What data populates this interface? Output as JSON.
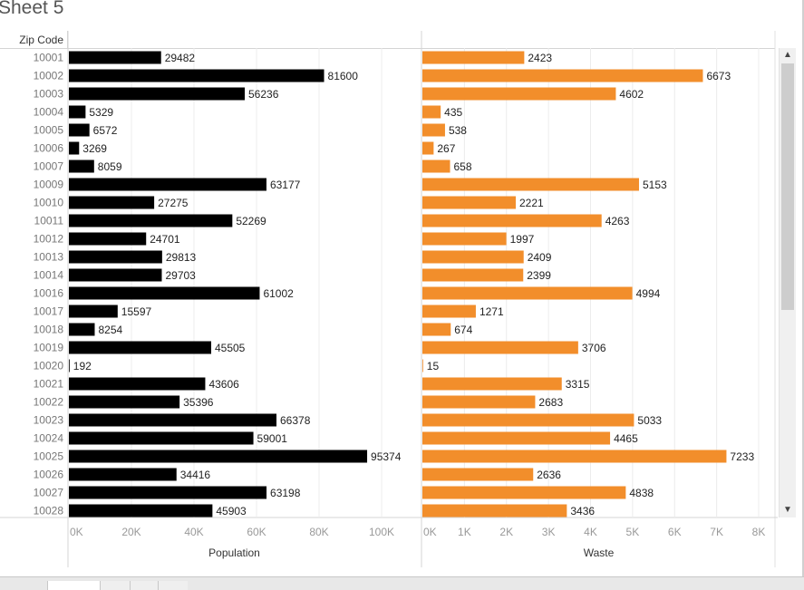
{
  "sheet_title": "Sheet 5",
  "row_header_label": "Zip Code",
  "chart_data": {
    "type": "bar",
    "orientation": "horizontal",
    "categories": [
      "10001",
      "10002",
      "10003",
      "10004",
      "10005",
      "10006",
      "10007",
      "10009",
      "10010",
      "10011",
      "10012",
      "10013",
      "10014",
      "10016",
      "10017",
      "10018",
      "10019",
      "10020",
      "10021",
      "10022",
      "10023",
      "10024",
      "10025",
      "10026",
      "10027",
      "10028"
    ],
    "series": [
      {
        "name": "Population",
        "color": "#000000",
        "values": [
          29482,
          81600,
          56236,
          5329,
          6572,
          3269,
          8059,
          63177,
          27275,
          52269,
          24701,
          29813,
          29703,
          61002,
          15597,
          8254,
          45505,
          192,
          43606,
          35396,
          66378,
          59001,
          95374,
          34416,
          63198,
          45903
        ],
        "xlim": [
          0,
          100000
        ],
        "ticks": [
          "0K",
          "20K",
          "40K",
          "60K",
          "80K",
          "100K"
        ],
        "axis_title": "Population"
      },
      {
        "name": "Waste",
        "color": "#f28e2b",
        "values": [
          2423,
          6673,
          4602,
          435,
          538,
          267,
          658,
          5153,
          2221,
          4263,
          1997,
          2409,
          2399,
          4994,
          1271,
          674,
          3706,
          15,
          3315,
          2683,
          5033,
          4465,
          7233,
          2636,
          4838,
          3436
        ],
        "xlim": [
          0,
          8000
        ],
        "ticks": [
          "0K",
          "1K",
          "2K",
          "3K",
          "4K",
          "5K",
          "6K",
          "7K",
          "8K"
        ],
        "axis_title": "Waste"
      }
    ],
    "grid": true
  },
  "scrollbar": {
    "up_arrow": "chevron-up-icon",
    "down_arrow": "chevron-down-icon"
  }
}
